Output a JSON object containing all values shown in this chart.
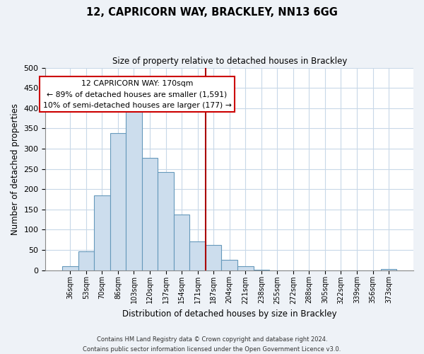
{
  "title": "12, CAPRICORN WAY, BRACKLEY, NN13 6GG",
  "subtitle": "Size of property relative to detached houses in Brackley",
  "xlabel": "Distribution of detached houses by size in Brackley",
  "ylabel": "Number of detached properties",
  "bar_labels": [
    "36sqm",
    "53sqm",
    "70sqm",
    "86sqm",
    "103sqm",
    "120sqm",
    "137sqm",
    "154sqm",
    "171sqm",
    "187sqm",
    "204sqm",
    "221sqm",
    "238sqm",
    "255sqm",
    "272sqm",
    "288sqm",
    "305sqm",
    "322sqm",
    "339sqm",
    "356sqm",
    "373sqm"
  ],
  "bar_values": [
    10,
    47,
    185,
    338,
    398,
    278,
    242,
    138,
    70,
    62,
    26,
    9,
    1,
    0,
    0,
    0,
    0,
    0,
    0,
    0,
    2
  ],
  "bar_color": "#ccdded",
  "bar_edge_color": "#6699bb",
  "vline_color": "#aa0000",
  "annotation_title": "12 CAPRICORN WAY: 170sqm",
  "annotation_line1": "← 89% of detached houses are smaller (1,591)",
  "annotation_line2": "10% of semi-detached houses are larger (177) →",
  "annotation_box_edge": "#cc0000",
  "ylim": [
    0,
    500
  ],
  "yticks": [
    0,
    50,
    100,
    150,
    200,
    250,
    300,
    350,
    400,
    450,
    500
  ],
  "footer1": "Contains HM Land Registry data © Crown copyright and database right 2024.",
  "footer2": "Contains public sector information licensed under the Open Government Licence v3.0.",
  "bg_color": "#eef2f7",
  "plot_bg_color": "#ffffff",
  "grid_color": "#c8d8e8"
}
